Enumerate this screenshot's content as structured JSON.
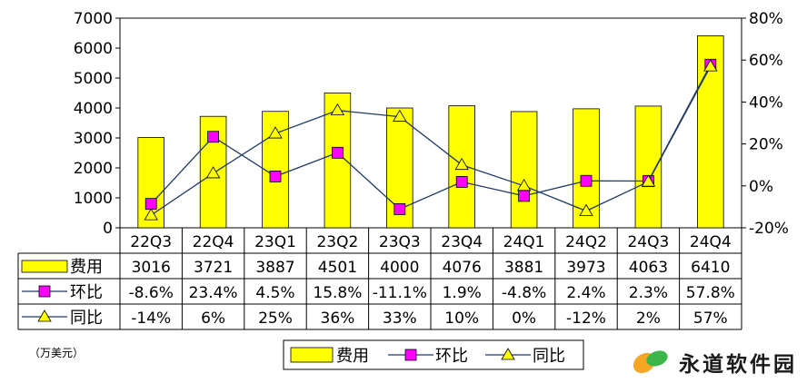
{
  "chart_data": {
    "type": "bar",
    "categories": [
      "22Q3",
      "22Q4",
      "23Q1",
      "23Q2",
      "23Q3",
      "23Q4",
      "24Q1",
      "24Q2",
      "24Q3",
      "24Q4"
    ],
    "series": [
      {
        "name": "费用",
        "kind": "bar",
        "axis": "left",
        "color": "#ffff00",
        "values": [
          3016,
          3721,
          3887,
          4501,
          4000,
          4076,
          3881,
          3973,
          4063,
          6410
        ],
        "labels": [
          "3016",
          "3721",
          "3887",
          "4501",
          "4000",
          "4076",
          "3881",
          "3973",
          "4063",
          "6410"
        ]
      },
      {
        "name": "环比",
        "kind": "line",
        "axis": "right",
        "color": "#ff00ff",
        "values": [
          -8.6,
          23.4,
          4.5,
          15.8,
          -11.1,
          1.9,
          -4.8,
          2.4,
          2.3,
          57.8
        ],
        "labels": [
          "-8.6%",
          "23.4%",
          "4.5%",
          "15.8%",
          "-11.1%",
          "1.9%",
          "-4.8%",
          "2.4%",
          "2.3%",
          "57.8%"
        ]
      },
      {
        "name": "同比",
        "kind": "line",
        "axis": "right",
        "color": "#ffff00",
        "values": [
          -14,
          6,
          25,
          36,
          33,
          10,
          0,
          -12,
          2,
          57
        ],
        "labels": [
          "-14%",
          "6%",
          "25%",
          "36%",
          "33%",
          "10%",
          "0%",
          "-12%",
          "2%",
          "57%"
        ]
      }
    ],
    "ylim": [
      0,
      7000
    ],
    "yticks": [
      "0",
      "1000",
      "2000",
      "3000",
      "4000",
      "5000",
      "6000",
      "7000"
    ],
    "y2lim": [
      -20,
      80
    ],
    "y2ticks": [
      "-20%",
      "0%",
      "20%",
      "40%",
      "60%",
      "80%"
    ],
    "line_color": "#1f3864",
    "grid": false,
    "legend": "bottom-center",
    "data_table": true
  },
  "unit_label": "（万美元）",
  "watermark": "永道软件园"
}
